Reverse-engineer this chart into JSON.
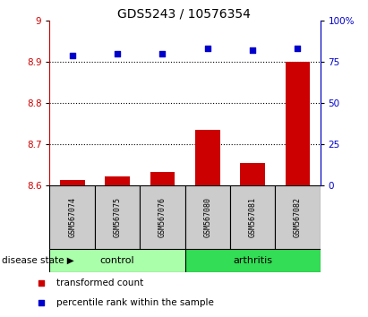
{
  "title": "GDS5243 / 10576354",
  "samples": [
    "GSM567074",
    "GSM567075",
    "GSM567076",
    "GSM567080",
    "GSM567081",
    "GSM567082"
  ],
  "transformed_counts": [
    8.613,
    8.623,
    8.632,
    8.735,
    8.655,
    8.9
  ],
  "percentile_ranks": [
    79,
    80,
    80,
    83,
    82,
    83
  ],
  "ylim_left": [
    8.6,
    9.0
  ],
  "ylim_right": [
    0,
    100
  ],
  "yticks_left": [
    8.6,
    8.7,
    8.8,
    8.9,
    9.0
  ],
  "ytick_labels_left": [
    "8.6",
    "8.7",
    "8.8",
    "8.9",
    "9"
  ],
  "yticks_right": [
    0,
    25,
    50,
    75,
    100
  ],
  "ytick_labels_right": [
    "0",
    "25",
    "50",
    "75",
    "100%"
  ],
  "groups": [
    {
      "label": "control",
      "indices": [
        0,
        1,
        2
      ],
      "color": "#AAFFAA"
    },
    {
      "label": "arthritis",
      "indices": [
        3,
        4,
        5
      ],
      "color": "#33DD55"
    }
  ],
  "bar_color": "#CC0000",
  "scatter_color": "#0000CC",
  "bar_bottom": 8.6,
  "left_axis_color": "#CC0000",
  "right_axis_color": "#0000CC",
  "bg_color_samples": "#CCCCCC",
  "disease_state_label": "disease state",
  "legend_items": [
    {
      "label": "transformed count",
      "color": "#CC0000",
      "marker": "s"
    },
    {
      "label": "percentile rank within the sample",
      "color": "#0000CC",
      "marker": "s"
    }
  ],
  "dotted_line_color": "black",
  "grid_values": [
    8.7,
    8.8,
    8.9
  ],
  "title_fontsize": 10,
  "tick_fontsize": 7.5,
  "sample_fontsize": 6,
  "group_fontsize": 8,
  "legend_fontsize": 7.5
}
